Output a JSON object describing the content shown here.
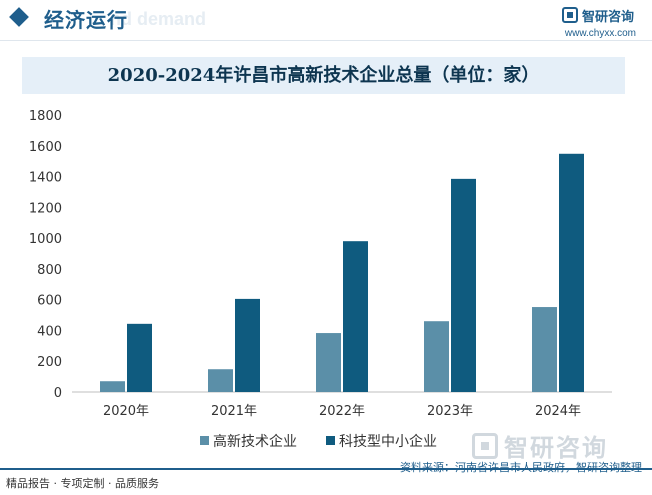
{
  "header": {
    "section_title": "经济运行",
    "ghost_text": "nd demand",
    "brand": "智研咨询",
    "site": "www.chyxx.com",
    "diamond_icon": "diamond-icon",
    "accent": "#1f5e8c"
  },
  "chart_data": {
    "type": "bar",
    "title": "2020-2024年许昌市高新技术企业总量（单位：家）",
    "categories": [
      "2020年",
      "2021年",
      "2022年",
      "2023年",
      "2024年"
    ],
    "series": [
      {
        "name": "高新技术企业",
        "values": [
          70,
          148,
          383,
          460,
          552
        ],
        "color": "#5b8fa8"
      },
      {
        "name": "科技型中小企业",
        "values": [
          443,
          605,
          980,
          1385,
          1548
        ],
        "color": "#0f5b7f"
      }
    ],
    "ylim": [
      0,
      1800
    ],
    "yticks": [
      0,
      200,
      400,
      600,
      800,
      1000,
      1200,
      1400,
      1600,
      1800
    ],
    "xlabel": "",
    "ylabel": "",
    "grid": false,
    "legend": "bottom"
  },
  "footer": {
    "left": "精品报告 · 专项定制 · 品质服务",
    "source": "资料来源：河南省许昌市人民政府，智研咨询整理",
    "watermark_brand": "智研咨询"
  }
}
